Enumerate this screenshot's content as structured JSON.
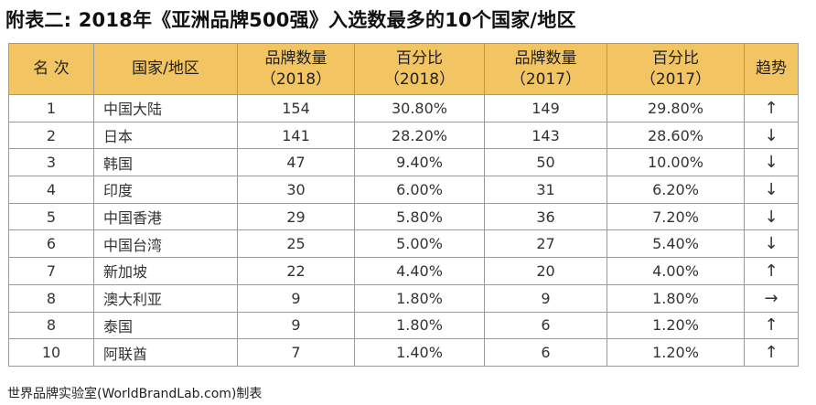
{
  "title": "附表二: 2018年《亚洲品牌500强》入选数最多的10个国家/地区",
  "headers": [
    {
      "line1": "名 次",
      "line2": ""
    },
    {
      "line1": "国家/地区",
      "line2": ""
    },
    {
      "line1": "品牌数量",
      "line2": "（2018）"
    },
    {
      "line1": "百分比",
      "line2": "（2018）"
    },
    {
      "line1": "品牌数量",
      "line2": "（2017）"
    },
    {
      "line1": "百分比",
      "line2": "（2017）"
    },
    {
      "line1": "趋势",
      "line2": ""
    }
  ],
  "rows": [
    {
      "rank": "1",
      "country": "中国大陆",
      "count2018": "154",
      "pct2018": "30.80%",
      "count2017": "149",
      "pct2017": "29.80%",
      "trend": "↑"
    },
    {
      "rank": "2",
      "country": "日本",
      "count2018": "141",
      "pct2018": "28.20%",
      "count2017": "143",
      "pct2017": "28.60%",
      "trend": "↓"
    },
    {
      "rank": "3",
      "country": "韩国",
      "count2018": "47",
      "pct2018": "9.40%",
      "count2017": "50",
      "pct2017": "10.00%",
      "trend": "↓"
    },
    {
      "rank": "4",
      "country": "印度",
      "count2018": "30",
      "pct2018": "6.00%",
      "count2017": "31",
      "pct2017": "6.20%",
      "trend": "↓"
    },
    {
      "rank": "5",
      "country": "中国香港",
      "count2018": "29",
      "pct2018": "5.80%",
      "count2017": "36",
      "pct2017": "7.20%",
      "trend": "↓"
    },
    {
      "rank": "6",
      "country": "中国台湾",
      "count2018": "25",
      "pct2018": "5.00%",
      "count2017": "27",
      "pct2017": "5.40%",
      "trend": "↓"
    },
    {
      "rank": "7",
      "country": "新加坡",
      "count2018": "22",
      "pct2018": "4.40%",
      "count2017": "20",
      "pct2017": "4.00%",
      "trend": "↑"
    },
    {
      "rank": "8",
      "country": "澳大利亚",
      "count2018": "9",
      "pct2018": "1.80%",
      "count2017": "9",
      "pct2017": "1.80%",
      "trend": "→"
    },
    {
      "rank": "8",
      "country": "泰国",
      "count2018": "9",
      "pct2018": "1.80%",
      "count2017": "6",
      "pct2017": "1.20%",
      "trend": "↑"
    },
    {
      "rank": "10",
      "country": "阿联酋",
      "count2018": "7",
      "pct2018": "1.40%",
      "count2017": "6",
      "pct2017": "1.20%",
      "trend": "↑"
    }
  ],
  "footer": "世界品牌实验室(WorldBrandLab.com)制表",
  "colors": {
    "header_bg": "#f2c462",
    "border": "#9a9a9a"
  }
}
